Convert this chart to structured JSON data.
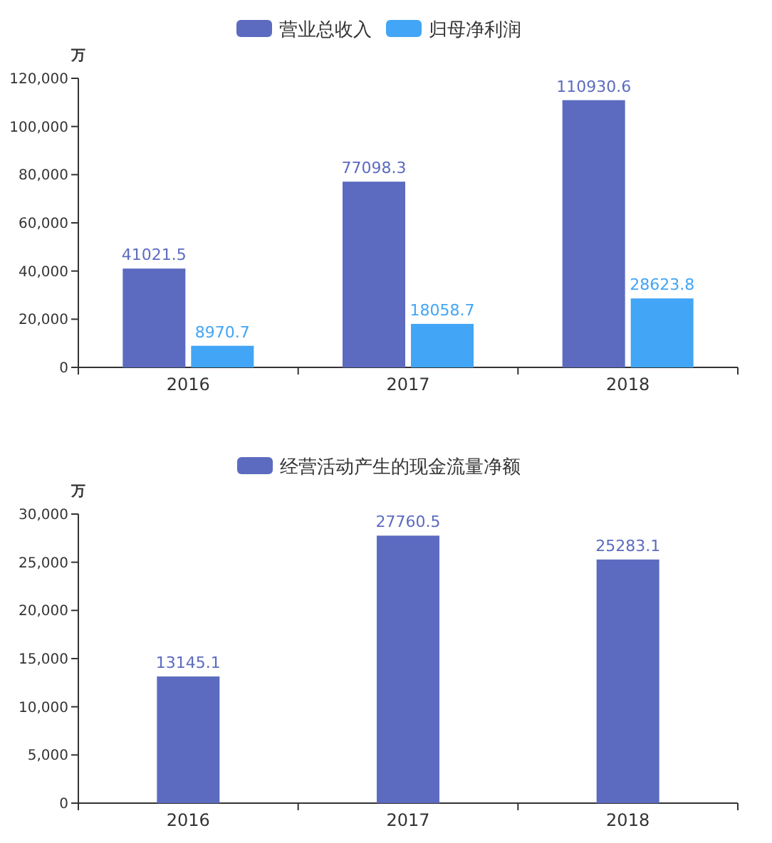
{
  "chart_data": [
    {
      "type": "bar",
      "ylabel": "万",
      "categories": [
        "2016",
        "2017",
        "2018"
      ],
      "series": [
        {
          "name": "营业总收入",
          "color": "#5c6bc0",
          "values": [
            41021.5,
            77098.3,
            110930.6
          ]
        },
        {
          "name": "归母净利润",
          "color": "#42a5f5",
          "values": [
            8970.7,
            18058.7,
            28623.8
          ]
        }
      ],
      "ylim": [
        0,
        120000
      ],
      "yticks": [
        0,
        {
          "value": 20000,
          "label": "20,000"
        },
        {
          "value": 40000,
          "label": "40,000"
        },
        {
          "value": 60000,
          "label": "60,000"
        },
        {
          "value": 80000,
          "label": "80,000"
        },
        {
          "value": 100000,
          "label": "100,000"
        },
        {
          "value": 120000,
          "label": "120,000"
        }
      ],
      "data_labels": true,
      "legend": "top",
      "grid": false
    },
    {
      "type": "bar",
      "ylabel": "万",
      "categories": [
        "2016",
        "2017",
        "2018"
      ],
      "series": [
        {
          "name": "经营活动产生的现金流量净额",
          "color": "#5c6bc0",
          "values": [
            13145.1,
            27760.5,
            25283.1
          ]
        }
      ],
      "ylim": [
        0,
        30000
      ],
      "yticks": [
        0,
        {
          "value": 5000,
          "label": "5,000"
        },
        {
          "value": 10000,
          "label": "10,000"
        },
        {
          "value": 15000,
          "label": "15,000"
        },
        {
          "value": 20000,
          "label": "20,000"
        },
        {
          "value": 25000,
          "label": "25,000"
        },
        {
          "value": 30000,
          "label": "30,000"
        }
      ],
      "data_labels": true,
      "legend": "top",
      "grid": false
    }
  ]
}
